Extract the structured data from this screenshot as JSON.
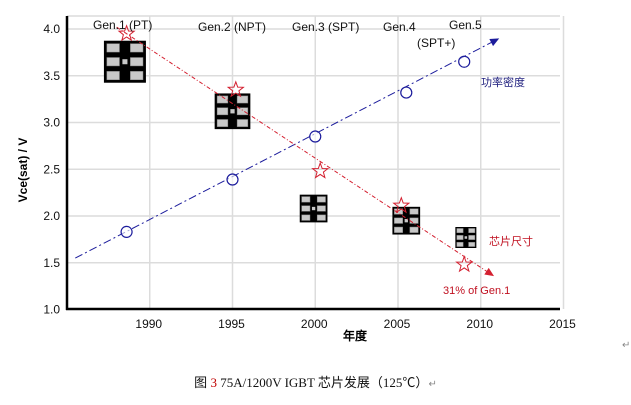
{
  "paragraph_mark": "↵",
  "chart_data": {
    "type": "line",
    "xlabel": "年度",
    "ylabel": "Vce(sat) / V",
    "xlim": [
      1985,
      2015
    ],
    "ylim": [
      1.0,
      4.15
    ],
    "xticks": [
      "1990",
      "1995",
      "2000",
      "2005",
      "2010",
      "2015"
    ],
    "yticks": [
      "1.0",
      "1.5",
      "2.0",
      "2.5",
      "3.0",
      "3.5",
      "4.0"
    ],
    "grid": true,
    "series": [
      {
        "name": "功率密度",
        "color": "#1c1c9c",
        "marker": "circle",
        "x": [
          1988.6,
          1995,
          2000,
          2005.5,
          2009
        ],
        "y": [
          1.83,
          2.39,
          2.85,
          3.32,
          3.65
        ],
        "trend_start": [
          1985.5,
          1.55
        ],
        "trend_end": [
          2010.9,
          3.88
        ]
      },
      {
        "name": "芯片尺寸",
        "color": "#d42030",
        "marker": "star",
        "x": [
          1988.6,
          1995.2,
          2000.3,
          2005.2,
          2009
        ],
        "y": [
          3.95,
          3.35,
          2.48,
          2.11,
          1.48
        ],
        "trend_start": [
          1988,
          4.02
        ],
        "trend_end": [
          2010.6,
          1.38
        ]
      }
    ],
    "chip_images": [
      {
        "year": 1988.5,
        "vce": 3.65,
        "size": 1.0
      },
      {
        "year": 1995,
        "vce": 3.12,
        "size": 0.85
      },
      {
        "year": 1999.9,
        "vce": 2.08,
        "size": 0.66
      },
      {
        "year": 2005.5,
        "vce": 1.95,
        "size": 0.66
      },
      {
        "year": 2009.1,
        "vce": 1.77,
        "size": 0.5
      }
    ],
    "annotations": {
      "gen1": "Gen.1 (PT)",
      "gen2": "Gen.2 (NPT)",
      "gen3": "Gen.3 (SPT)",
      "gen4": "Gen.4",
      "gen5": "Gen.5",
      "gen5b": "(SPT+)",
      "power_density": "功率密度",
      "chip_size": "芯片尺寸",
      "reduction": "31% of Gen.1"
    }
  },
  "caption": {
    "prefix": "图 ",
    "number": "3",
    "text": " 75A/1200V IGBT 芯片发展（125℃）"
  }
}
